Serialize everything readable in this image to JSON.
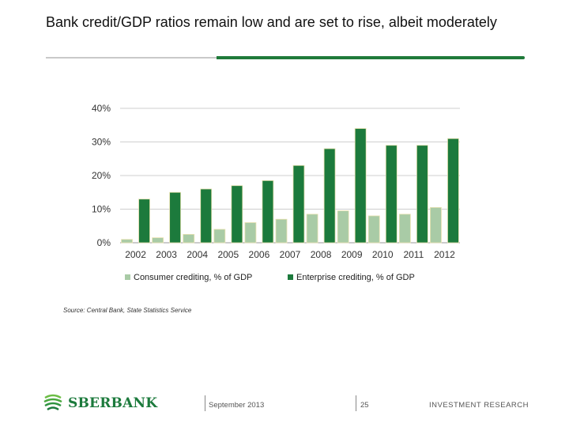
{
  "slide": {
    "title": "Bank credit/GDP ratios remain low and are set to rise, albeit moderately",
    "source": "Source: Central Bank, State Statistics Service"
  },
  "footer": {
    "brand": "SBERBANK",
    "date": "September 2013",
    "page": "25",
    "section": "INVESTMENT RESEARCH"
  },
  "colors": {
    "consumer": "#a9cba6",
    "enterprise": "#1c7a3c",
    "grid": "#cfcfcf"
  },
  "chart_data": {
    "type": "bar",
    "categories": [
      "2002",
      "2003",
      "2004",
      "2005",
      "2006",
      "2007",
      "2008",
      "2009",
      "2010",
      "2011",
      "2012"
    ],
    "series": [
      {
        "name": "Consumer crediting, % of GDP",
        "values": [
          1,
          1.5,
          2.5,
          4,
          6,
          7,
          8.5,
          9.5,
          8,
          8.5,
          10.5
        ]
      },
      {
        "name": "Enterprise crediting, % of GDP",
        "values": [
          13,
          15,
          16,
          17,
          18.5,
          23,
          28,
          34,
          29,
          29,
          31
        ]
      }
    ],
    "yticks": [
      "0%",
      "10%",
      "20%",
      "30%",
      "40%"
    ],
    "ylim": [
      0,
      40
    ],
    "grid": true,
    "legend": "bottom"
  }
}
